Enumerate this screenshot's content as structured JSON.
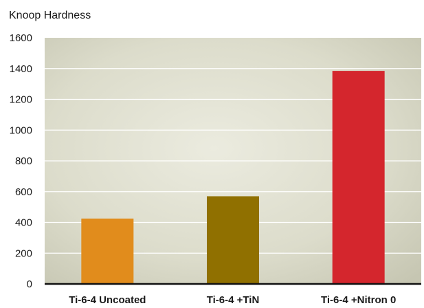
{
  "chart_data": {
    "type": "bar",
    "ylabel": "Knoop Hardness",
    "categories": [
      "Ti-6-4 Uncoated",
      "Ti-6-4 +TiN",
      "Ti-6-4 +Nitron 0"
    ],
    "values": [
      425,
      570,
      1385
    ],
    "colors": [
      "#e18c1c",
      "#907000",
      "#d4262d"
    ],
    "ylim": [
      0,
      1600
    ],
    "yticks": [
      0,
      200,
      400,
      600,
      800,
      1000,
      1200,
      1400,
      1600
    ],
    "grid": true,
    "legend": "none",
    "background": "#d9d8c8"
  }
}
